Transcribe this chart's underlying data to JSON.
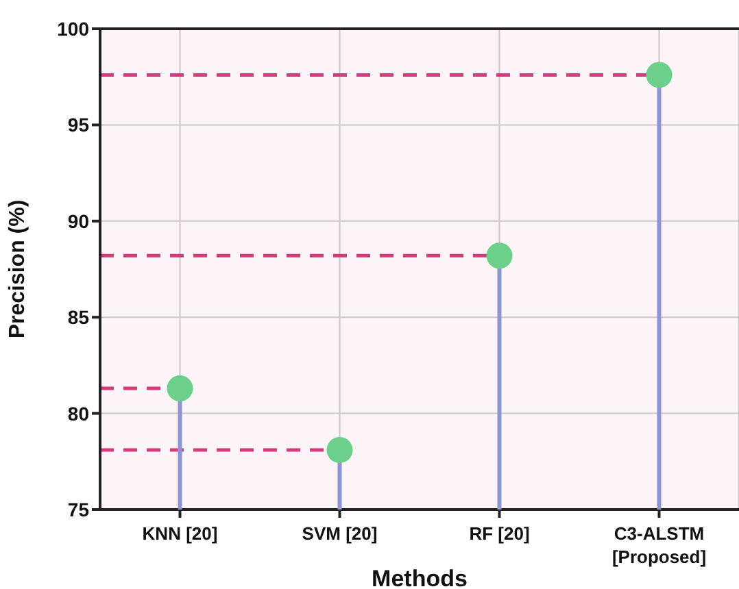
{
  "chart_data": {
    "type": "lollipop",
    "xlabel": "Methods",
    "ylabel": "Precision (%)",
    "categories": [
      "KNN [20]",
      "SVM [20]",
      "RF [20]",
      "C3-ALSTM\n[Proposed]"
    ],
    "series": [
      {
        "color": "#6dd08a",
        "values": [
          81.3,
          78.1,
          88.2,
          97.6
        ]
      }
    ],
    "ylim": [
      75,
      100
    ],
    "yticks": [
      75,
      80,
      85,
      90,
      95,
      100
    ],
    "grid": true,
    "marker": "circle",
    "ref_lines": [
      {
        "axis": "y",
        "value": 97.6,
        "color": "#d63a7a",
        "line_style": "dashed"
      },
      {
        "axis": "y",
        "value": 88.2,
        "color": "#d63a7a",
        "line_style": "dashed"
      },
      {
        "axis": "y",
        "value": 81.3,
        "color": "#d63a7a",
        "line_style": "dashed"
      },
      {
        "axis": "y",
        "value": 78.1,
        "color": "#d63a7a",
        "line_style": "dashed"
      }
    ]
  }
}
